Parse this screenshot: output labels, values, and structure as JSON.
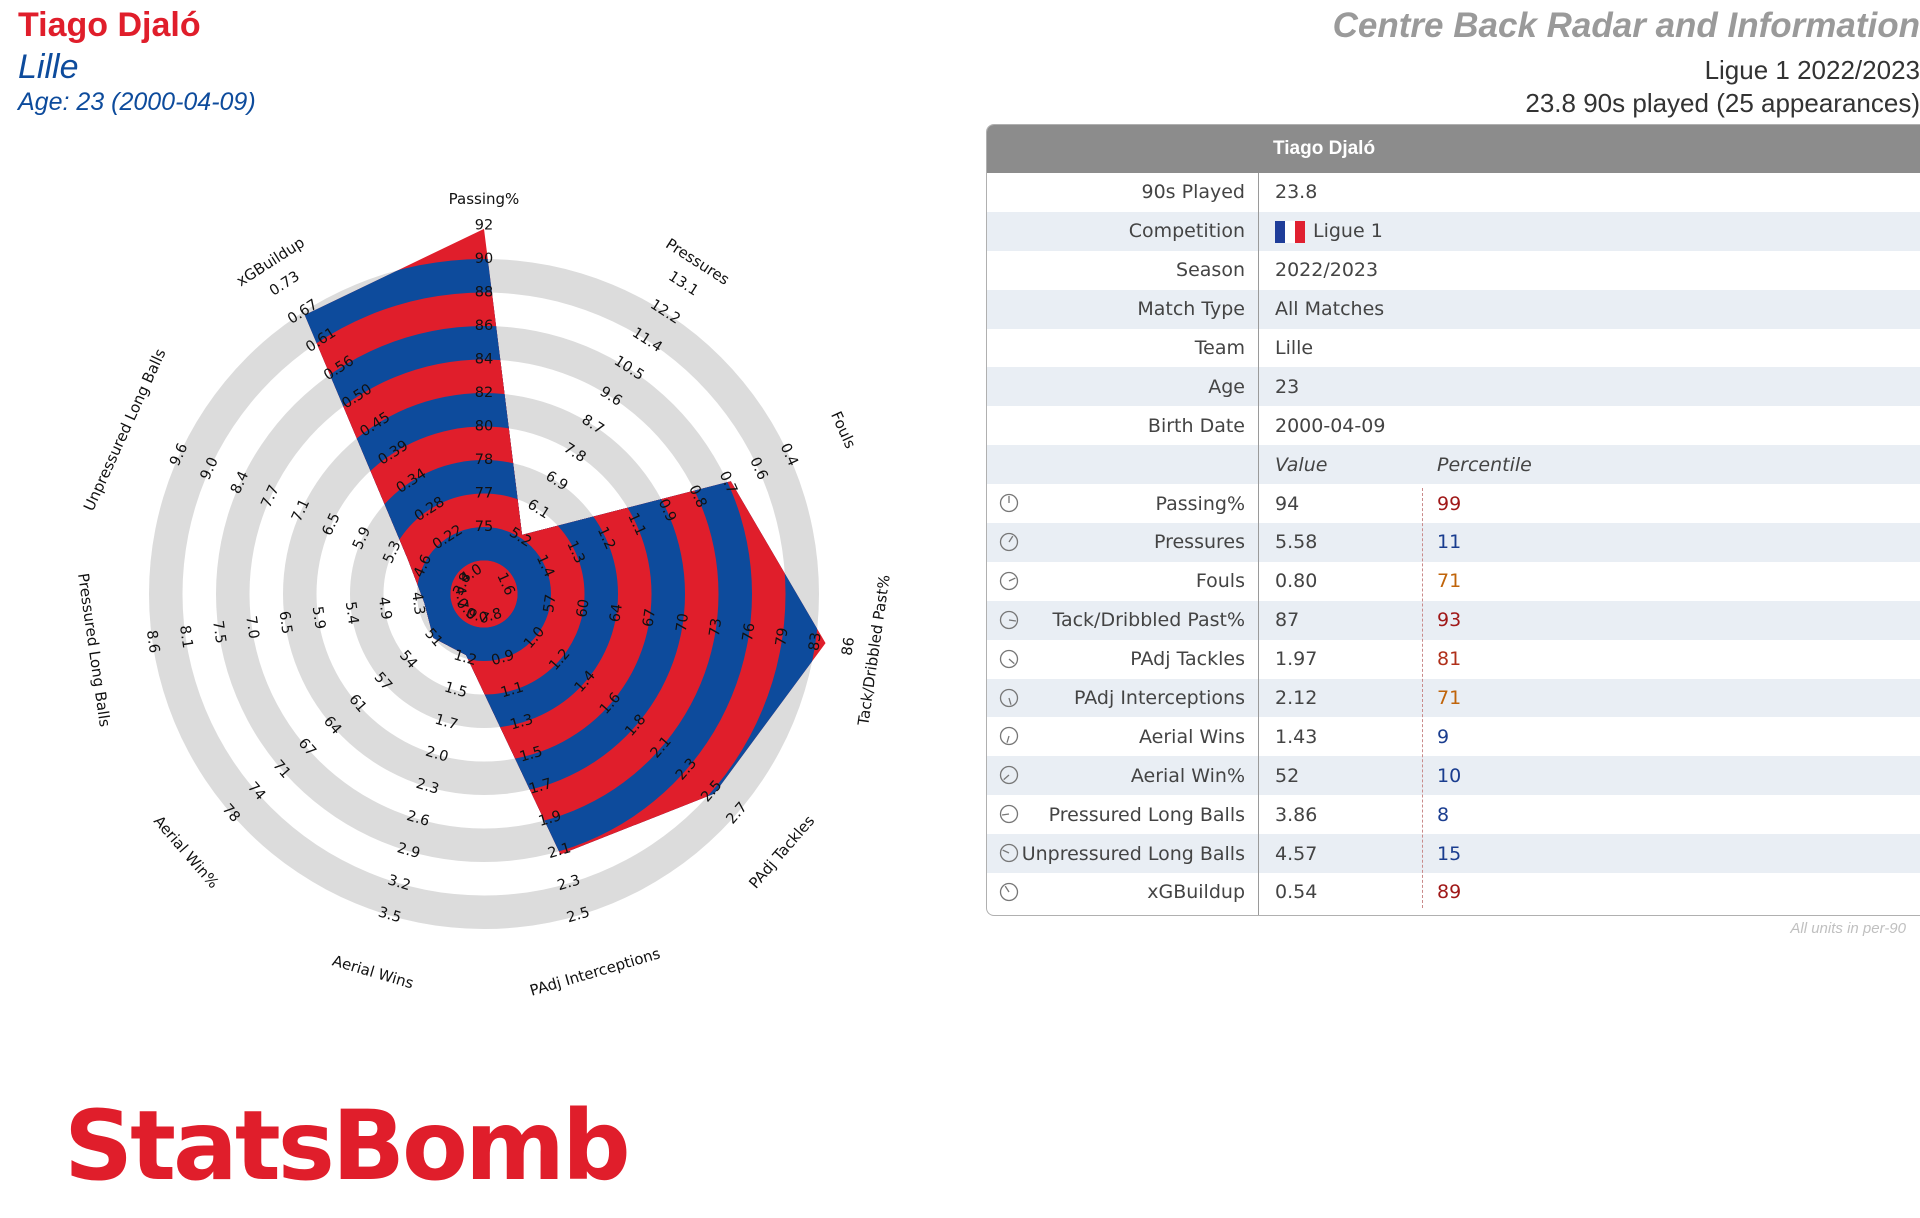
{
  "header": {
    "player_name": "Tiago Djaló",
    "team": "Lille",
    "age_line": "Age: 23 (2000-04-09)",
    "report_title": "Centre Back Radar and Information",
    "competition_line": "Ligue 1 2022/2023",
    "played_line": "23.8 90s played (25 appearances)"
  },
  "logo_text": "StatsBomb",
  "colors": {
    "red": "#e01e2b",
    "blue": "#0d4b9c",
    "ring": "#dcdcdc"
  },
  "chart_data": {
    "type": "radar",
    "axes": [
      {
        "name": "Passing%",
        "value": 94,
        "ticks": [
          "75",
          "77",
          "78",
          "80",
          "82",
          "84",
          "86",
          "88",
          "90",
          "92"
        ]
      },
      {
        "name": "Pressures",
        "value": 5.58,
        "ticks": [
          "5.2",
          "6.1",
          "6.9",
          "7.8",
          "8.7",
          "9.6",
          "10.5",
          "11.4",
          "12.2",
          "13.1"
        ]
      },
      {
        "name": "Fouls",
        "value": 0.8,
        "ticks": [
          "1.4",
          "1.3",
          "1.2",
          "1.1",
          "0.9",
          "0.8",
          "0.7",
          "0.6",
          "0.4"
        ]
      },
      {
        "name": "Tack/Dribbled Past%",
        "value": 87,
        "ticks": [
          "57",
          "60",
          "64",
          "67",
          "70",
          "73",
          "76",
          "79",
          "83",
          "86"
        ]
      },
      {
        "name": "PAdj Tackles",
        "value": 1.97,
        "ticks": [
          "1.0",
          "1.2",
          "1.4",
          "1.6",
          "1.8",
          "2.1",
          "2.3",
          "2.5",
          "2.7"
        ]
      },
      {
        "name": "PAdj Interceptions",
        "value": 2.12,
        "ticks": [
          "0.9",
          "1.1",
          "1.3",
          "1.5",
          "1.7",
          "1.9",
          "2.1",
          "2.3",
          "2.5"
        ]
      },
      {
        "name": "Aerial Wins",
        "value": 1.43,
        "ticks": [
          "1.2",
          "1.5",
          "1.7",
          "2.0",
          "2.3",
          "2.6",
          "2.9",
          "3.2",
          "3.5"
        ]
      },
      {
        "name": "Aerial Win%",
        "value": 52,
        "ticks": [
          "51",
          "54",
          "57",
          "61",
          "64",
          "67",
          "71",
          "74",
          "78"
        ]
      },
      {
        "name": "Pressured Long Balls",
        "value": 3.86,
        "ticks": [
          "4.3",
          "4.9",
          "5.4",
          "5.9",
          "6.5",
          "7.0",
          "7.5",
          "8.1",
          "8.6"
        ]
      },
      {
        "name": "Unpressured Long Balls",
        "value": 4.57,
        "ticks": [
          "4.6",
          "5.3",
          "5.9",
          "6.5",
          "7.1",
          "7.7",
          "8.4",
          "9.0",
          "9.6"
        ]
      },
      {
        "name": "xGBuildup",
        "value": 0.54,
        "ticks": [
          "0.22",
          "0.28",
          "0.34",
          "0.39",
          "0.45",
          "0.50",
          "0.56",
          "0.61",
          "0.67",
          "0.73"
        ]
      }
    ],
    "inner_ticks": [
      "4.0",
      "3.8",
      "4.7",
      "0.9",
      "0.7",
      "0.8",
      "1.6"
    ],
    "percentiles": [
      99,
      11,
      71,
      93,
      81,
      71,
      9,
      10,
      8,
      15,
      89
    ]
  },
  "table": {
    "title": "Tiago Djaló",
    "info_rows": [
      {
        "label": "90s Played",
        "value": "23.8"
      },
      {
        "label": "Competition",
        "value": "Ligue 1",
        "flag": true
      },
      {
        "label": "Season",
        "value": "2022/2023"
      },
      {
        "label": "Match Type",
        "value": "All Matches"
      },
      {
        "label": "Team",
        "value": "Lille"
      },
      {
        "label": "Age",
        "value": "23"
      },
      {
        "label": "Birth Date",
        "value": "2000-04-09"
      }
    ],
    "col_value": "Value",
    "col_percentile": "Percentile",
    "stat_rows": [
      {
        "label": "Passing%",
        "value": "94",
        "pct": "99",
        "pct_color": "#a01818"
      },
      {
        "label": "Pressures",
        "value": "5.58",
        "pct": "11",
        "pct_color": "#1a3d8f"
      },
      {
        "label": "Fouls",
        "value": "0.80",
        "pct": "71",
        "pct_color": "#c0640a"
      },
      {
        "label": "Tack/Dribbled Past%",
        "value": "87",
        "pct": "93",
        "pct_color": "#a01818"
      },
      {
        "label": "PAdj Tackles",
        "value": "1.97",
        "pct": "81",
        "pct_color": "#b0301a"
      },
      {
        "label": "PAdj Interceptions",
        "value": "2.12",
        "pct": "71",
        "pct_color": "#c0640a"
      },
      {
        "label": "Aerial Wins",
        "value": "1.43",
        "pct": "9",
        "pct_color": "#1a3d8f"
      },
      {
        "label": "Aerial Win%",
        "value": "52",
        "pct": "10",
        "pct_color": "#1a3d8f"
      },
      {
        "label": "Pressured Long Balls",
        "value": "3.86",
        "pct": "8",
        "pct_color": "#1a3d8f"
      },
      {
        "label": "Unpressured Long Balls",
        "value": "4.57",
        "pct": "15",
        "pct_color": "#1a3d8f"
      },
      {
        "label": "xGBuildup",
        "value": "0.54",
        "pct": "89",
        "pct_color": "#a01818"
      }
    ],
    "units_note": "All units in per-90"
  }
}
